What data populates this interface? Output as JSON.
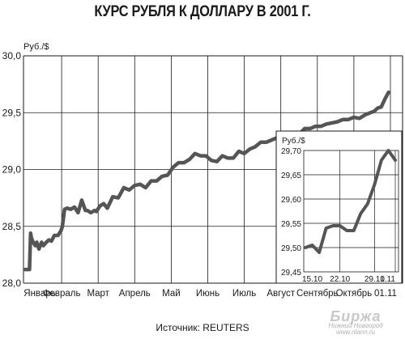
{
  "chart_data": [
    {
      "type": "line",
      "title": "КУРС РУБЛЯ К ДОЛЛАРУ В 2001 Г.",
      "ylabel": "Руб./$",
      "xlabel": "",
      "ylim": [
        28.0,
        30.0
      ],
      "yticks": [
        "28,0",
        "28,5",
        "29,0",
        "29,5",
        "30,0"
      ],
      "ytick_values": [
        28.0,
        28.5,
        29.0,
        29.5,
        30.0
      ],
      "categories": [
        "Январь",
        "Февраль",
        "Март",
        "Апрель",
        "Май",
        "Июнь",
        "Июль",
        "Август",
        "Сентябрь",
        "Октябрь",
        "01.11"
      ],
      "grid": true,
      "x": [
        0.0,
        0.12,
        0.15,
        0.17,
        0.22,
        0.28,
        0.32,
        0.38,
        0.45,
        0.5,
        0.58,
        0.65,
        0.72,
        0.8,
        0.9,
        0.98,
        1.02,
        1.08,
        1.15,
        1.25,
        1.35,
        1.45,
        1.55,
        1.65,
        1.7,
        1.8,
        1.9,
        1.95,
        2.05,
        2.15,
        2.25,
        2.4,
        2.55,
        2.7,
        2.85,
        3.0,
        3.15,
        3.3,
        3.45,
        3.6,
        3.75,
        3.9,
        4.05,
        4.2,
        4.35,
        4.5,
        4.65,
        4.8,
        4.95,
        5.1,
        5.25,
        5.4,
        5.55,
        5.7,
        5.85,
        6.0,
        6.15,
        6.3,
        6.45,
        6.6,
        6.75,
        6.9,
        7.05,
        7.2,
        7.35,
        7.5,
        7.65,
        7.8,
        7.95,
        8.1,
        8.25,
        8.4,
        8.55,
        8.7,
        8.85,
        9.0,
        9.15,
        9.3,
        9.45,
        9.55,
        9.65,
        9.75,
        9.85,
        9.95
      ],
      "series": [
        {
          "values": [
            28.12,
            28.12,
            28.44,
            28.4,
            28.36,
            28.33,
            28.36,
            28.3,
            28.36,
            28.33,
            28.36,
            28.38,
            28.37,
            28.42,
            28.42,
            28.46,
            28.5,
            28.65,
            28.66,
            28.65,
            28.67,
            28.62,
            28.73,
            28.64,
            28.64,
            28.62,
            28.64,
            28.63,
            28.68,
            28.7,
            28.66,
            28.76,
            28.75,
            28.84,
            28.82,
            28.86,
            28.87,
            28.84,
            28.9,
            28.9,
            28.94,
            28.95,
            29.02,
            29.06,
            29.06,
            29.09,
            29.14,
            29.12,
            29.12,
            29.08,
            29.07,
            29.12,
            29.1,
            29.1,
            29.16,
            29.14,
            29.18,
            29.2,
            29.24,
            29.24,
            29.26,
            29.28,
            29.3,
            29.31,
            29.32,
            29.31,
            29.36,
            29.36,
            29.38,
            29.38,
            29.4,
            29.41,
            29.42,
            29.44,
            29.44,
            29.46,
            29.45,
            29.48,
            29.5,
            29.51,
            29.54,
            29.55,
            29.62,
            29.68
          ]
        }
      ]
    },
    {
      "type": "line",
      "title": "",
      "ylabel": "Руб./$",
      "xlabel": "",
      "ylim": [
        29.45,
        29.7
      ],
      "yticks": [
        "29,45",
        "29,50",
        "29,55",
        "29,60",
        "29,65",
        "29,70"
      ],
      "ytick_values": [
        29.45,
        29.5,
        29.55,
        29.6,
        29.65,
        29.7
      ],
      "categories": [
        "15.10",
        "22.10",
        "29.10",
        "1.11"
      ],
      "grid": true,
      "x": [
        0,
        1,
        2,
        3,
        4,
        5,
        6,
        7,
        8,
        9,
        10,
        11,
        12,
        13
      ],
      "series": [
        {
          "values": [
            29.5,
            29.505,
            29.49,
            29.54,
            29.545,
            29.545,
            29.535,
            29.535,
            29.57,
            29.59,
            29.63,
            29.68,
            29.7,
            29.68
          ]
        }
      ]
    }
  ],
  "source_note": "Источник: REUTERS",
  "watermark": {
    "big": "Биржа",
    "line1": "Нижний Новгород",
    "line2": "www.nlann.ru"
  }
}
